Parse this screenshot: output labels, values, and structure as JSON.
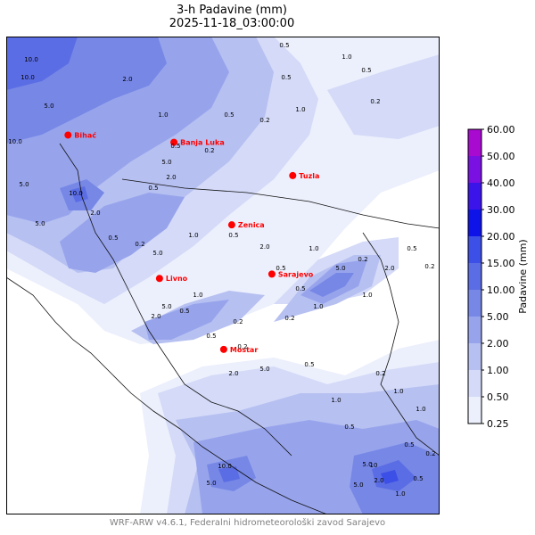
{
  "title": "3-h Padavine (mm)",
  "subtitle": "2025-11-18_03:00:00",
  "footer": "WRF-ARW v4.6.1, Federalni hidrometeorološki zavod Sarajevo",
  "colorbar": {
    "label": "Padavine (mm)",
    "levels": [
      "0.25",
      "0.50",
      "1.00",
      "2.00",
      "5.00",
      "10.00",
      "15.00",
      "20.00",
      "30.00",
      "40.00",
      "50.00",
      "60.00"
    ],
    "colors": [
      "#eceffc",
      "#d4daf7",
      "#b6c0f1",
      "#97a4ec",
      "#7787e6",
      "#5b6de4",
      "#3c4fe6",
      "#0e14e8",
      "#3a14e8",
      "#7a10e2",
      "#a90ad0"
    ]
  },
  "cities": [
    {
      "name": "Bihać",
      "lon": 15.87,
      "lat": 44.82
    },
    {
      "name": "Banja Luka",
      "lon": 17.19,
      "lat": 44.77
    },
    {
      "name": "Tuzla",
      "lon": 18.67,
      "lat": 44.54
    },
    {
      "name": "Zenica",
      "lon": 17.91,
      "lat": 44.2
    },
    {
      "name": "Livno",
      "lon": 17.01,
      "lat": 43.83
    },
    {
      "name": "Sarajevo",
      "lon": 18.41,
      "lat": 43.86
    },
    {
      "name": "Mostar",
      "lon": 17.81,
      "lat": 43.34
    }
  ],
  "contour_labels": [
    "0.5",
    "0.5",
    "1.0",
    "0.5",
    "0.2",
    "10.0",
    "10.0",
    "2.0",
    "5.0",
    "10.0",
    "1.0",
    "0.5",
    "0.2",
    "1.0",
    "0.2",
    "0.5",
    "5.0",
    "2.0",
    "0.5",
    "5.0",
    "10.0",
    "2.0",
    "5.0",
    "0.5",
    "0.2",
    "5.0",
    "1.0",
    "0.5",
    "2.0",
    "1.0",
    "5.0",
    "0.2",
    "2.0",
    "0.5",
    "1.0",
    "1.0",
    "0.5",
    "0.2",
    "0.5",
    "0.2",
    "0.2",
    "0.2",
    "5.0",
    "1.0",
    "0.5",
    "0.5",
    "2.0",
    "5.0",
    "0.5",
    "1.0",
    "0.2",
    "1.0",
    "0.5",
    "1.0",
    "0.2",
    "0.5",
    "5.0",
    "10.0",
    "5.0",
    "2.0",
    "5.0",
    "1.0",
    "0.5",
    "10",
    "2.0"
  ]
}
